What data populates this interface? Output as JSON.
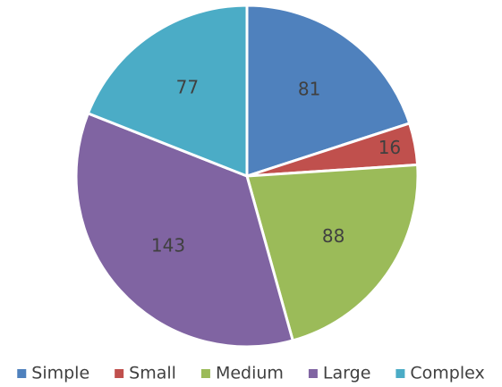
{
  "chart_data": {
    "type": "pie",
    "categories": [
      "Simple",
      "Small",
      "Medium",
      "Large",
      "Complex"
    ],
    "values": [
      81,
      16,
      88,
      143,
      77
    ],
    "colors": [
      "#4f81bd",
      "#c0504d",
      "#9bbb59",
      "#8064a2",
      "#4bacc6"
    ],
    "legend": "bottom"
  }
}
